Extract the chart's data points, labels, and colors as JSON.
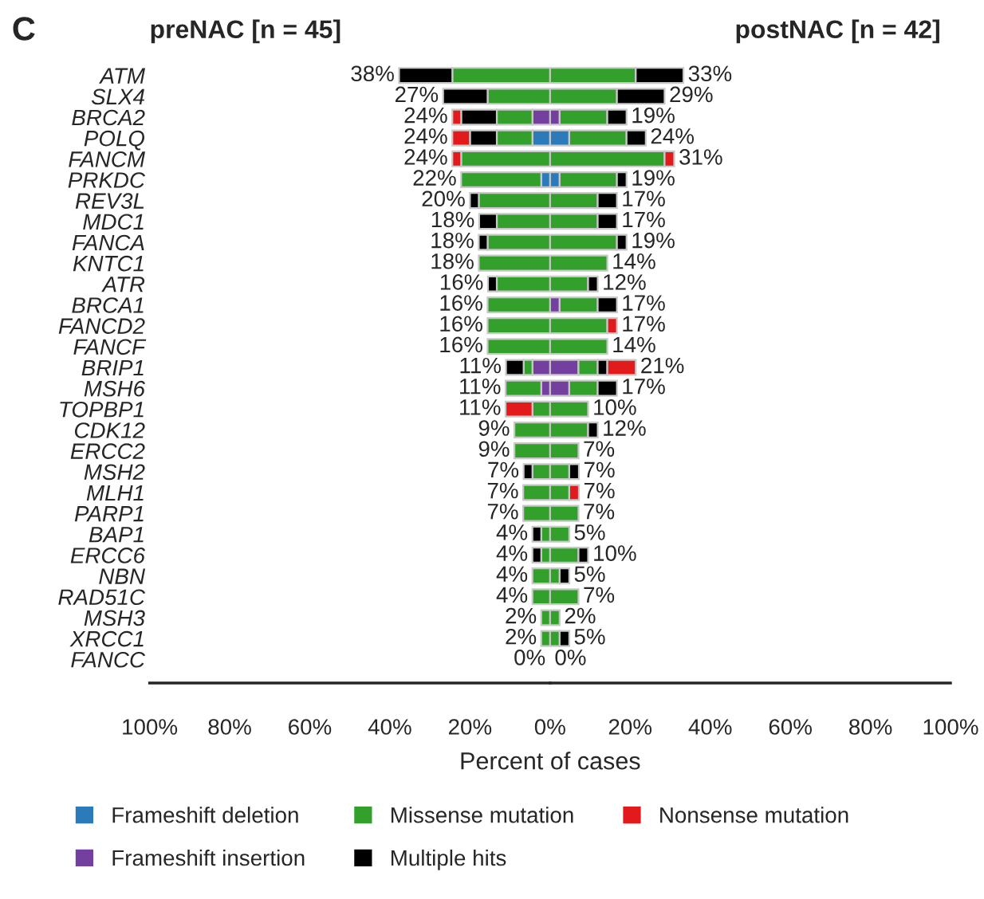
{
  "chart_data": [
    {
      "type": "bar",
      "orientation": "horizontal",
      "stacked": true,
      "annotations": [
        "C",
        "preNAC [n = 45]"
      ],
      "xlabel": "Percent of cases",
      "categories": [
        "ATM",
        "SLX4",
        "BRCA2",
        "POLQ",
        "FANCM",
        "PRKDC",
        "REV3L",
        "MDC1",
        "FANCA",
        "KNTC1",
        "ATR",
        "BRCA1",
        "FANCD2",
        "FANCF",
        "BRIP1",
        "MSH6",
        "TOPBP1",
        "CDK12",
        "ERCC2",
        "MSH2",
        "MLH1",
        "PARP1",
        "BAP1",
        "ERCC6",
        "NBN",
        "RAD51C",
        "MSH3",
        "XRCC1",
        "FANCC"
      ],
      "series": [
        {
          "name": "Frameshift deletion",
          "color": "#2b7bba",
          "values": [
            null,
            null,
            null,
            4.4,
            null,
            2.2,
            null,
            null,
            null,
            null,
            null,
            null,
            null,
            null,
            null,
            null,
            null,
            null,
            null,
            null,
            null,
            null,
            null,
            null,
            null,
            null,
            null,
            null,
            null
          ]
        },
        {
          "name": "Frameshift insertion",
          "color": "#7440a0",
          "values": [
            null,
            null,
            4.4,
            null,
            null,
            null,
            null,
            null,
            null,
            null,
            null,
            null,
            null,
            null,
            4.4,
            2.2,
            null,
            null,
            null,
            null,
            null,
            null,
            null,
            null,
            null,
            null,
            null,
            null,
            null
          ]
        },
        {
          "name": "Missense mutation",
          "color": "#33a02c",
          "values": [
            24.4,
            15.6,
            8.9,
            8.9,
            22.2,
            20.0,
            17.8,
            13.3,
            15.6,
            17.8,
            13.3,
            15.6,
            15.6,
            15.6,
            2.2,
            8.9,
            4.4,
            8.9,
            8.9,
            4.4,
            6.7,
            6.7,
            2.2,
            2.2,
            4.4,
            4.4,
            2.2,
            2.2,
            null
          ]
        },
        {
          "name": "Multiple hits",
          "color": "#000000",
          "values": [
            13.3,
            11.1,
            8.9,
            6.7,
            null,
            null,
            2.2,
            4.4,
            2.2,
            null,
            2.2,
            null,
            null,
            null,
            4.4,
            null,
            null,
            null,
            null,
            2.2,
            null,
            null,
            2.2,
            2.2,
            null,
            null,
            null,
            null,
            null
          ]
        },
        {
          "name": "Nonsense mutation",
          "color": "#e31a1c",
          "values": [
            null,
            null,
            2.2,
            4.4,
            2.2,
            null,
            null,
            null,
            null,
            null,
            null,
            null,
            null,
            null,
            null,
            null,
            6.7,
            null,
            null,
            null,
            null,
            null,
            null,
            null,
            null,
            null,
            null,
            null,
            null
          ]
        }
      ],
      "totals": [
        "38%",
        "27%",
        "24%",
        "24%",
        "24%",
        "22%",
        "20%",
        "18%",
        "18%",
        "18%",
        "16%",
        "16%",
        "16%",
        "16%",
        "11%",
        "11%",
        "11%",
        "9%",
        "9%",
        "7%",
        "7%",
        "7%",
        "4%",
        "4%",
        "4%",
        "4%",
        "2%",
        "2%",
        "0%"
      ],
      "xlim": [
        100,
        0
      ],
      "xticks": [
        {
          "value": 20,
          "label": "20%"
        },
        {
          "value": 40,
          "label": "40%"
        },
        {
          "value": 60,
          "label": "60%"
        },
        {
          "value": 80,
          "label": "80%"
        },
        {
          "value": 100,
          "label": "100%"
        }
      ],
      "legend": "bottom"
    },
    {
      "type": "bar",
      "orientation": "horizontal",
      "stacked": true,
      "annotations": [
        "postNAC [n = 42]"
      ],
      "categories": [
        null,
        null,
        null,
        null,
        null,
        null,
        null,
        null,
        null,
        null,
        null,
        null,
        null,
        null,
        null,
        null,
        null,
        null,
        null,
        null,
        null,
        null,
        null,
        null,
        null,
        null,
        null,
        null,
        null
      ],
      "series": [
        {
          "color": "#2b7bba",
          "values": [
            null,
            null,
            null,
            4.8,
            null,
            2.4,
            null,
            null,
            null,
            null,
            null,
            null,
            null,
            null,
            null,
            null,
            null,
            null,
            null,
            null,
            null,
            null,
            null,
            null,
            null,
            null,
            null,
            null,
            null
          ]
        },
        {
          "color": "#7440a0",
          "values": [
            null,
            null,
            2.4,
            null,
            null,
            null,
            null,
            null,
            null,
            null,
            null,
            2.4,
            null,
            null,
            7.1,
            4.8,
            null,
            null,
            null,
            null,
            null,
            null,
            null,
            null,
            null,
            null,
            null,
            null,
            null
          ]
        },
        {
          "color": "#33a02c",
          "values": [
            21.4,
            16.7,
            11.9,
            14.3,
            28.6,
            14.3,
            11.9,
            11.9,
            16.7,
            14.3,
            9.5,
            9.5,
            14.3,
            14.3,
            4.8,
            7.1,
            9.5,
            9.5,
            7.1,
            4.8,
            4.8,
            7.1,
            4.8,
            7.1,
            2.4,
            7.1,
            2.4,
            2.4,
            null
          ]
        },
        {
          "color": "#000000",
          "values": [
            11.9,
            11.9,
            4.8,
            4.8,
            null,
            2.4,
            4.8,
            4.8,
            2.4,
            null,
            2.4,
            4.8,
            null,
            null,
            2.4,
            4.8,
            null,
            2.4,
            null,
            2.4,
            null,
            null,
            null,
            2.4,
            2.4,
            null,
            null,
            2.4,
            null
          ]
        },
        {
          "color": "#e31a1c",
          "values": [
            null,
            null,
            null,
            null,
            2.4,
            null,
            null,
            null,
            null,
            null,
            null,
            null,
            2.4,
            null,
            7.1,
            null,
            null,
            null,
            null,
            null,
            2.4,
            null,
            null,
            null,
            null,
            null,
            null,
            null,
            null
          ]
        }
      ],
      "totals": [
        "33%",
        "29%",
        "19%",
        "24%",
        "31%",
        "19%",
        "17%",
        "17%",
        "19%",
        "14%",
        "12%",
        "17%",
        "17%",
        "14%",
        "21%",
        "17%",
        "10%",
        "12%",
        "7%",
        "7%",
        "7%",
        "7%",
        "5%",
        "10%",
        "5%",
        "7%",
        "2%",
        "5%",
        "0%"
      ],
      "xlim": [
        0,
        100
      ],
      "xticks": [
        {
          "value": 0,
          "label": "0%"
        },
        {
          "value": 20,
          "label": "20%"
        },
        {
          "value": 40,
          "label": "40%"
        },
        {
          "value": 60,
          "label": "60%"
        },
        {
          "value": 80,
          "label": "80%"
        },
        {
          "value": 100,
          "label": "100%"
        }
      ]
    }
  ]
}
